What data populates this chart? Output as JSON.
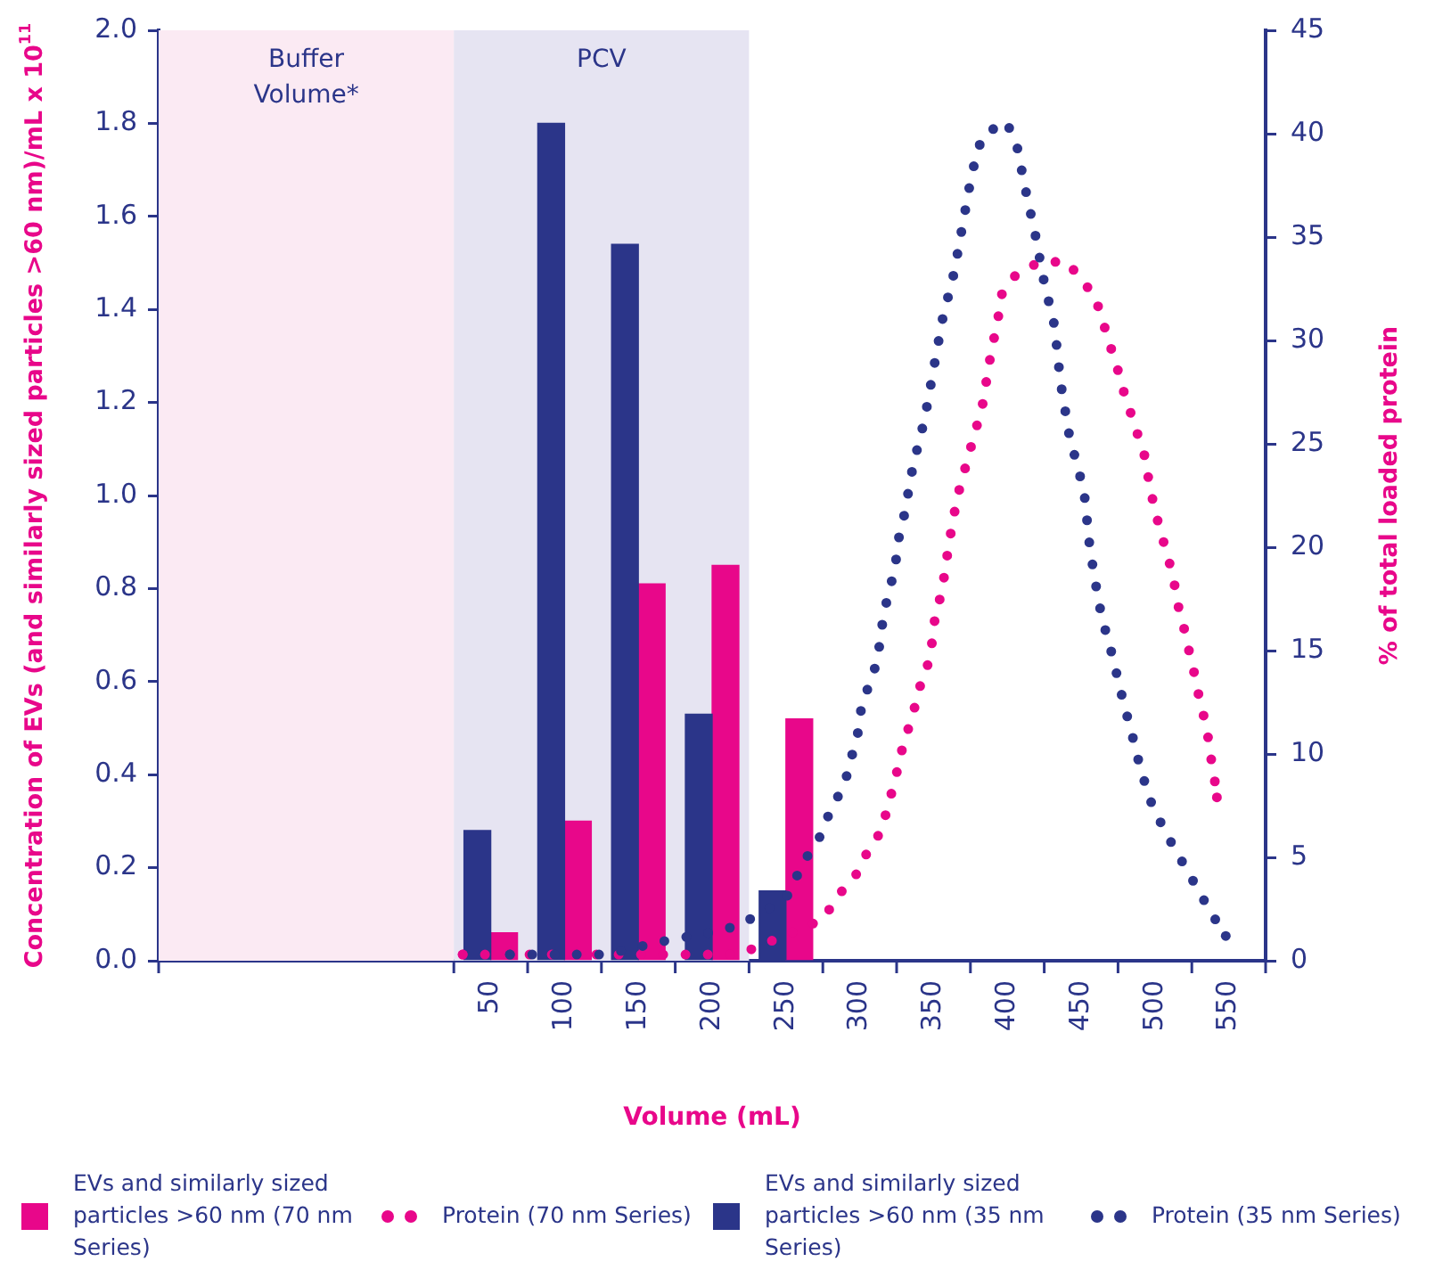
{
  "chart_data": {
    "type": "bar",
    "xlabel": "Volume (mL)",
    "ylabel": "Concentration of EVs (and similarly sized particles >60 nm)/mL x 10$^{11}$",
    "y2label": "% of total loaded protein",
    "xlim": [
      -175,
      575
    ],
    "xticks": [
      {
        "value": -175,
        "label": null
      },
      {
        "value": 25,
        "label": null
      },
      50,
      {
        "value": 75,
        "label": null
      },
      100,
      {
        "value": 125,
        "label": null
      },
      150,
      {
        "value": 175,
        "label": null
      },
      200,
      {
        "value": 225,
        "label": null
      },
      250,
      {
        "value": 275,
        "label": null
      },
      300,
      {
        "value": 325,
        "label": null
      },
      350,
      {
        "value": 375,
        "label": null
      },
      400,
      {
        "value": 425,
        "label": null
      },
      450,
      {
        "value": 475,
        "label": null
      },
      500,
      {
        "value": 525,
        "label": null
      },
      550,
      {
        "value": 575,
        "label": null
      }
    ],
    "ylim": [
      0,
      2.0
    ],
    "yticks": [
      {
        "value": 0,
        "label": "0.0"
      },
      0.2,
      0.4,
      0.6,
      0.8,
      {
        "value": 1,
        "label": "1.0"
      },
      1.2,
      1.4,
      1.6,
      1.8,
      {
        "value": 2,
        "label": "2.0"
      }
    ],
    "y2lim": [
      0,
      45
    ],
    "y2ticks": [
      0,
      5,
      10,
      15,
      20,
      25,
      30,
      35,
      40,
      45
    ],
    "bands": [
      {
        "axis": "x",
        "from": -175,
        "to": 25,
        "label": "Buffer Volume*",
        "color": "#fbeaf3"
      },
      {
        "axis": "x",
        "from": 25,
        "to": 225,
        "label": "PCV",
        "color": "#e6e4f2"
      }
    ],
    "legend": "bottom",
    "series": [
      {
        "name": "EVs and similarly sized particles >60 nm (70 nm Series)",
        "color": "#e8078a",
        "x": [
          50,
          100,
          150,
          200,
          250
        ],
        "values": [
          0.06,
          0.3,
          0.81,
          0.85,
          0.52
        ]
      },
      {
        "name": "Protein (70 nm Series)",
        "type": "line",
        "axis": "y2",
        "line_style": "dotted",
        "color": "#e8078a",
        "x": [
          31,
          66,
          118,
          170,
          218,
          262,
          275,
          286,
          299,
          306,
          315,
          319,
          324,
          327,
          332,
          337,
          341,
          346,
          349,
          351,
          355,
          358,
          360,
          366,
          374,
          383,
          388,
          394,
          396,
          406,
          422,
          441,
          449,
          459,
          464,
          469,
          474,
          479,
          484,
          489,
          494,
          496,
          500,
          504,
          509,
          513,
          516,
          520,
          524,
          528,
          531,
          535,
          537,
          540,
          542
        ],
        "values": [
          0.3,
          0.3,
          0.3,
          0.3,
          0.3,
          1.6,
          2.0,
          3.2,
          4.3,
          5.4,
          6.3,
          7.5,
          8.7,
          9.8,
          11.0,
          12.2,
          13.3,
          14.3,
          15.4,
          16.6,
          17.7,
          18.9,
          20.0,
          22.4,
          24.5,
          26.8,
          29.0,
          31.2,
          32.2,
          33.2,
          33.8,
          33.8,
          33.0,
          32.2,
          31.1,
          29.9,
          28.8,
          27.5,
          26.4,
          25.3,
          24.2,
          23.1,
          21.8,
          20.7,
          19.5,
          18.3,
          17.1,
          16.0,
          14.7,
          13.5,
          12.3,
          11.4,
          10.2,
          9.0,
          7.9
        ]
      },
      {
        "name": "EVs and similarly sized particles >60 nm (35 nm Series)",
        "color": "#2b3589",
        "x": [
          50,
          100,
          150,
          200,
          250
        ],
        "values": [
          0.28,
          1.8,
          1.54,
          0.53,
          0.15
        ]
      },
      {
        "name": "Protein (35 nm Series)",
        "type": "line",
        "axis": "y2",
        "line_style": "dotted",
        "color": "#2b3589",
        "x": [
          63,
          80,
          112,
          128,
          164,
          201,
          218,
          250,
          256,
          264,
          273,
          278,
          285,
          291,
          295,
          299,
          301,
          306,
          311,
          314,
          316,
          320,
          324,
          326,
          330,
          336,
          344,
          350,
          356,
          364,
          370,
          376,
          383,
          399,
          406,
          412,
          419,
          425,
          432,
          436,
          442,
          452,
          456,
          462,
          466,
          471,
          475,
          479,
          484,
          488,
          492,
          496,
          501,
          508,
          516,
          524,
          531,
          540,
          548
        ],
        "values": [
          0.3,
          0.3,
          0.3,
          0.3,
          0.9,
          1.4,
          1.7,
          3.0,
          3.9,
          5.0,
          6.0,
          6.9,
          7.9,
          8.9,
          10.0,
          11.1,
          12.2,
          13.3,
          14.3,
          15.5,
          16.7,
          17.9,
          19.0,
          20.3,
          21.5,
          23.9,
          26.2,
          28.6,
          31.0,
          33.3,
          35.7,
          38.1,
          39.9,
          40.6,
          39.6,
          37.4,
          35.1,
          32.8,
          30.7,
          28.0,
          25.4,
          22.7,
          19.9,
          17.3,
          16.1,
          14.8,
          13.6,
          12.4,
          11.1,
          9.9,
          8.9,
          7.9,
          7.1,
          6.1,
          5.1,
          4.1,
          3.2,
          2.1,
          1.2
        ]
      }
    ]
  }
}
